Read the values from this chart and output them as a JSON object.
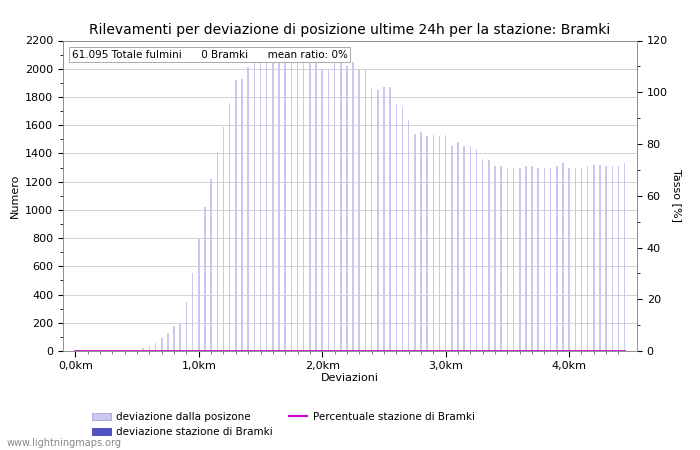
{
  "title": "Rilevamenti per deviazione di posizione ultime 24h per la stazione: Bramki",
  "xlabel": "Deviazioni",
  "ylabel_left": "Numero",
  "ylabel_right": "Tasso [%]",
  "annotation": "61.095 Totale fulmini      0 Bramki      mean ratio: 0%",
  "watermark": "www.lightningmaps.org",
  "legend_labels": [
    "deviazione dalla posizone",
    "deviazione stazione di Bramki",
    "Percentuale stazione di Bramki"
  ],
  "bar_color_light": "#c8c8f0",
  "bar_color_dark": "#5050c0",
  "line_color": "#cc00cc",
  "ylim_left": [
    0,
    2200
  ],
  "ylim_right": [
    0,
    120
  ],
  "xtick_positions": [
    0,
    20,
    40,
    60,
    80
  ],
  "xtick_labels": [
    "0,0km",
    "1,0km",
    "2,0km",
    "3,0km",
    "4,0km"
  ],
  "total_bins": 90,
  "bar_values": [
    2,
    1,
    1,
    2,
    1,
    1,
    2,
    3,
    3,
    5,
    10,
    20,
    35,
    55,
    90,
    130,
    175,
    200,
    350,
    550,
    800,
    1020,
    1220,
    1410,
    1590,
    1760,
    1920,
    1930,
    2010,
    2040,
    2060,
    2080,
    2100,
    2090,
    2080,
    2060,
    2050,
    2040,
    2040,
    2050,
    2000,
    2000,
    2040,
    2040,
    2020,
    2050,
    2000,
    2000,
    1860,
    1850,
    1870,
    1870,
    1750,
    1730,
    1640,
    1540,
    1550,
    1520,
    1530,
    1520,
    1530,
    1450,
    1480,
    1450,
    1450,
    1430,
    1360,
    1350,
    1310,
    1310,
    1300,
    1300,
    1300,
    1310,
    1310,
    1300,
    1300,
    1300,
    1310,
    1330,
    1300,
    1300,
    1300,
    1310,
    1315,
    1320,
    1310,
    1310,
    1310,
    1330
  ],
  "bramki_values": [
    0,
    0,
    0,
    0,
    0,
    0,
    0,
    0,
    0,
    0,
    0,
    0,
    0,
    0,
    0,
    0,
    0,
    0,
    0,
    0,
    0,
    0,
    0,
    0,
    0,
    0,
    0,
    0,
    0,
    0,
    0,
    0,
    0,
    0,
    0,
    0,
    0,
    0,
    0,
    0,
    0,
    0,
    0,
    0,
    0,
    0,
    0,
    0,
    0,
    0,
    0,
    0,
    0,
    0,
    0,
    0,
    0,
    0,
    0,
    0,
    0,
    0,
    0,
    0,
    0,
    0,
    0,
    0,
    0,
    0,
    0,
    0,
    0,
    0,
    0,
    0,
    0,
    0,
    0,
    0,
    0,
    0,
    0,
    0,
    0,
    0,
    0,
    0,
    0,
    0
  ],
  "ratio_values": [
    0,
    0,
    0,
    0,
    0,
    0,
    0,
    0,
    0,
    0,
    0,
    0,
    0,
    0,
    0,
    0,
    0,
    0,
    0,
    0,
    0,
    0,
    0,
    0,
    0,
    0,
    0,
    0,
    0,
    0,
    0,
    0,
    0,
    0,
    0,
    0,
    0,
    0,
    0,
    0,
    0,
    0,
    0,
    0,
    0,
    0,
    0,
    0,
    0,
    0,
    0,
    0,
    0,
    0,
    0,
    0,
    0,
    0,
    0,
    0,
    0,
    0,
    0,
    0,
    0,
    0,
    0,
    0,
    0,
    0,
    0,
    0,
    0,
    0,
    0,
    0,
    0,
    0,
    0,
    0,
    0,
    0,
    0,
    0,
    0,
    0,
    0,
    0,
    0,
    0
  ]
}
